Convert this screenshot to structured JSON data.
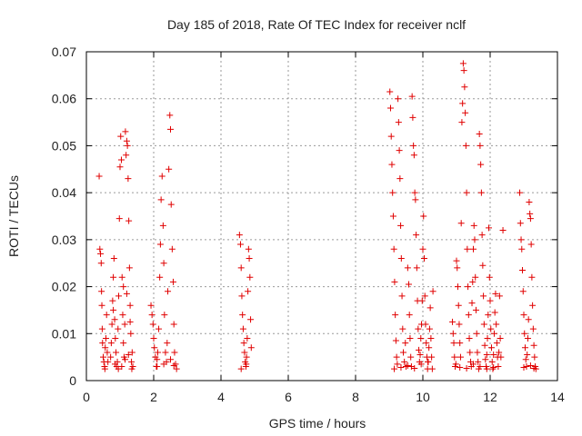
{
  "chart_data": {
    "type": "scatter",
    "title": "Day 185 of 2018, Rate Of TEC Index for receiver nclf",
    "xlabel": "GPS time / hours",
    "ylabel": "ROTI / TECUs",
    "xlim": [
      0,
      14
    ],
    "ylim": [
      0,
      0.07
    ],
    "xticks": [
      0,
      2,
      4,
      6,
      8,
      10,
      12,
      14
    ],
    "yticks": [
      0,
      0.01,
      0.02,
      0.03,
      0.04,
      0.05,
      0.06,
      0.07
    ],
    "ytick_labels": [
      "0",
      "0.01",
      "0.02",
      "0.03",
      "0.04",
      "0.05",
      "0.06",
      "0.07"
    ],
    "marker": "+",
    "color": "#e00000",
    "grid": true,
    "series": [
      {
        "name": "ROTI",
        "points": [
          [
            0.38,
            0.0435
          ],
          [
            0.4,
            0.028
          ],
          [
            0.42,
            0.027
          ],
          [
            0.44,
            0.025
          ],
          [
            0.45,
            0.019
          ],
          [
            0.46,
            0.016
          ],
          [
            0.47,
            0.011
          ],
          [
            0.48,
            0.008
          ],
          [
            0.5,
            0.005
          ],
          [
            0.52,
            0.004
          ],
          [
            0.54,
            0.003
          ],
          [
            0.55,
            0.0025
          ],
          [
            0.56,
            0.007
          ],
          [
            0.58,
            0.009
          ],
          [
            0.6,
            0.014
          ],
          [
            0.62,
            0.006
          ],
          [
            0.64,
            0.004
          ],
          [
            0.72,
            0.005
          ],
          [
            0.74,
            0.008
          ],
          [
            0.76,
            0.012
          ],
          [
            0.78,
            0.017
          ],
          [
            0.8,
            0.022
          ],
          [
            0.82,
            0.026
          ],
          [
            0.84,
            0.013
          ],
          [
            0.86,
            0.009
          ],
          [
            0.88,
            0.006
          ],
          [
            0.9,
            0.003
          ],
          [
            0.92,
            0.004
          ],
          [
            0.94,
            0.011
          ],
          [
            0.96,
            0.018
          ],
          [
            0.98,
            0.0345
          ],
          [
            1.0,
            0.0455
          ],
          [
            1.02,
            0.052
          ],
          [
            1.04,
            0.047
          ],
          [
            1.06,
            0.022
          ],
          [
            1.08,
            0.014
          ],
          [
            1.1,
            0.008
          ],
          [
            1.12,
            0.005
          ],
          [
            1.14,
            0.012
          ],
          [
            1.16,
            0.053
          ],
          [
            1.18,
            0.048
          ],
          [
            1.2,
            0.051
          ],
          [
            1.22,
            0.05
          ],
          [
            1.24,
            0.043
          ],
          [
            1.26,
            0.034
          ],
          [
            1.28,
            0.024
          ],
          [
            1.3,
            0.016
          ],
          [
            1.32,
            0.01
          ],
          [
            1.34,
            0.004
          ],
          [
            1.36,
            0.006
          ],
          [
            1.38,
            0.003
          ],
          [
            0.85,
            0.0035
          ],
          [
            0.95,
            0.0025
          ],
          [
            1.05,
            0.003
          ],
          [
            1.15,
            0.0045
          ],
          [
            1.25,
            0.0055
          ],
          [
            1.35,
            0.0025
          ],
          [
            0.8,
            0.015
          ],
          [
            1.1,
            0.02
          ],
          [
            1.2,
            0.0185
          ],
          [
            1.3,
            0.0125
          ],
          [
            1.92,
            0.016
          ],
          [
            1.95,
            0.014
          ],
          [
            1.98,
            0.012
          ],
          [
            2.0,
            0.009
          ],
          [
            2.02,
            0.007
          ],
          [
            2.05,
            0.005
          ],
          [
            2.08,
            0.003
          ],
          [
            2.1,
            0.0045
          ],
          [
            2.12,
            0.006
          ],
          [
            2.15,
            0.011
          ],
          [
            2.18,
            0.022
          ],
          [
            2.2,
            0.029
          ],
          [
            2.22,
            0.0385
          ],
          [
            2.25,
            0.0435
          ],
          [
            2.28,
            0.033
          ],
          [
            2.3,
            0.025
          ],
          [
            2.32,
            0.014
          ],
          [
            2.35,
            0.006
          ],
          [
            2.38,
            0.004
          ],
          [
            2.4,
            0.008
          ],
          [
            2.42,
            0.019
          ],
          [
            2.45,
            0.045
          ],
          [
            2.48,
            0.0565
          ],
          [
            2.5,
            0.0535
          ],
          [
            2.52,
            0.0375
          ],
          [
            2.55,
            0.028
          ],
          [
            2.58,
            0.021
          ],
          [
            2.6,
            0.012
          ],
          [
            2.62,
            0.006
          ],
          [
            2.65,
            0.0035
          ],
          [
            2.68,
            0.0025
          ],
          [
            2.1,
            0.003
          ],
          [
            2.3,
            0.0035
          ],
          [
            2.5,
            0.0045
          ],
          [
            2.6,
            0.0032
          ],
          [
            4.55,
            0.031
          ],
          [
            4.58,
            0.029
          ],
          [
            4.6,
            0.024
          ],
          [
            4.62,
            0.018
          ],
          [
            4.64,
            0.014
          ],
          [
            4.66,
            0.011
          ],
          [
            4.68,
            0.008
          ],
          [
            4.7,
            0.006
          ],
          [
            4.72,
            0.004
          ],
          [
            4.74,
            0.003
          ],
          [
            4.76,
            0.005
          ],
          [
            4.78,
            0.009
          ],
          [
            4.8,
            0.019
          ],
          [
            4.82,
            0.028
          ],
          [
            4.84,
            0.026
          ],
          [
            4.86,
            0.022
          ],
          [
            4.88,
            0.013
          ],
          [
            4.9,
            0.007
          ],
          [
            4.6,
            0.0025
          ],
          [
            4.75,
            0.0035
          ],
          [
            9.02,
            0.0615
          ],
          [
            9.04,
            0.058
          ],
          [
            9.06,
            0.052
          ],
          [
            9.08,
            0.046
          ],
          [
            9.1,
            0.04
          ],
          [
            9.12,
            0.035
          ],
          [
            9.14,
            0.028
          ],
          [
            9.16,
            0.021
          ],
          [
            9.18,
            0.014
          ],
          [
            9.2,
            0.0085
          ],
          [
            9.22,
            0.005
          ],
          [
            9.24,
            0.0035
          ],
          [
            9.26,
            0.06
          ],
          [
            9.28,
            0.055
          ],
          [
            9.3,
            0.049
          ],
          [
            9.32,
            0.043
          ],
          [
            9.34,
            0.033
          ],
          [
            9.36,
            0.026
          ],
          [
            9.38,
            0.018
          ],
          [
            9.4,
            0.011
          ],
          [
            9.42,
            0.006
          ],
          [
            9.45,
            0.004
          ],
          [
            9.48,
            0.008
          ],
          [
            9.5,
            0.003
          ],
          [
            9.55,
            0.024
          ],
          [
            9.58,
            0.0205
          ],
          [
            9.6,
            0.014
          ],
          [
            9.62,
            0.009
          ],
          [
            9.64,
            0.005
          ],
          [
            9.66,
            0.003
          ],
          [
            9.68,
            0.0605
          ],
          [
            9.7,
            0.056
          ],
          [
            9.72,
            0.05
          ],
          [
            9.74,
            0.048
          ],
          [
            9.76,
            0.04
          ],
          [
            9.78,
            0.0385
          ],
          [
            9.8,
            0.031
          ],
          [
            9.82,
            0.024
          ],
          [
            9.84,
            0.017
          ],
          [
            9.86,
            0.011
          ],
          [
            9.88,
            0.0065
          ],
          [
            9.9,
            0.004
          ],
          [
            9.92,
            0.0055
          ],
          [
            9.94,
            0.009
          ],
          [
            9.96,
            0.012
          ],
          [
            9.98,
            0.017
          ],
          [
            10.0,
            0.028
          ],
          [
            10.02,
            0.035
          ],
          [
            10.04,
            0.026
          ],
          [
            10.06,
            0.018
          ],
          [
            10.08,
            0.012
          ],
          [
            10.1,
            0.008
          ],
          [
            10.12,
            0.005
          ],
          [
            10.14,
            0.0025
          ],
          [
            10.16,
            0.004
          ],
          [
            10.18,
            0.007
          ],
          [
            10.2,
            0.011
          ],
          [
            10.22,
            0.0155
          ],
          [
            10.24,
            0.009
          ],
          [
            10.26,
            0.005
          ],
          [
            10.28,
            0.0025
          ],
          [
            10.3,
            0.019
          ],
          [
            9.15,
            0.0025
          ],
          [
            9.35,
            0.0028
          ],
          [
            9.55,
            0.0032
          ],
          [
            9.75,
            0.0026
          ],
          [
            9.95,
            0.0035
          ],
          [
            10.15,
            0.004
          ],
          [
            10.88,
            0.0125
          ],
          [
            10.9,
            0.01
          ],
          [
            10.92,
            0.008
          ],
          [
            10.94,
            0.005
          ],
          [
            10.96,
            0.003
          ],
          [
            10.98,
            0.0035
          ],
          [
            11.0,
            0.0255
          ],
          [
            11.02,
            0.024
          ],
          [
            11.04,
            0.02
          ],
          [
            11.06,
            0.016
          ],
          [
            11.08,
            0.012
          ],
          [
            11.1,
            0.008
          ],
          [
            11.12,
            0.005
          ],
          [
            11.14,
            0.0335
          ],
          [
            11.16,
            0.055
          ],
          [
            11.18,
            0.059
          ],
          [
            11.2,
            0.0675
          ],
          [
            11.22,
            0.066
          ],
          [
            11.24,
            0.0625
          ],
          [
            11.26,
            0.057
          ],
          [
            11.28,
            0.05
          ],
          [
            11.3,
            0.04
          ],
          [
            11.32,
            0.028
          ],
          [
            11.34,
            0.02
          ],
          [
            11.36,
            0.014
          ],
          [
            11.38,
            0.009
          ],
          [
            11.4,
            0.006
          ],
          [
            11.42,
            0.004
          ],
          [
            11.44,
            0.003
          ],
          [
            11.46,
            0.0165
          ],
          [
            11.48,
            0.021
          ],
          [
            11.5,
            0.028
          ],
          [
            11.52,
            0.033
          ],
          [
            11.54,
            0.03
          ],
          [
            11.56,
            0.022
          ],
          [
            11.58,
            0.015
          ],
          [
            11.6,
            0.01
          ],
          [
            11.62,
            0.006
          ],
          [
            11.64,
            0.004
          ],
          [
            11.66,
            0.0025
          ],
          [
            11.68,
            0.0525
          ],
          [
            11.7,
            0.05
          ],
          [
            11.72,
            0.046
          ],
          [
            11.74,
            0.04
          ],
          [
            11.76,
            0.031
          ],
          [
            11.78,
            0.0245
          ],
          [
            11.8,
            0.018
          ],
          [
            11.82,
            0.012
          ],
          [
            11.84,
            0.0075
          ],
          [
            11.86,
            0.0045
          ],
          [
            11.88,
            0.003
          ],
          [
            11.9,
            0.0055
          ],
          [
            11.92,
            0.009
          ],
          [
            11.94,
            0.014
          ],
          [
            11.96,
            0.0325
          ],
          [
            11.98,
            0.022
          ],
          [
            12.0,
            0.017
          ],
          [
            12.02,
            0.011
          ],
          [
            12.04,
            0.007
          ],
          [
            12.06,
            0.004
          ],
          [
            12.08,
            0.0025
          ],
          [
            12.1,
            0.0055
          ],
          [
            12.12,
            0.01
          ],
          [
            12.14,
            0.0145
          ],
          [
            12.16,
            0.0185
          ],
          [
            12.18,
            0.012
          ],
          [
            12.2,
            0.008
          ],
          [
            12.22,
            0.005
          ],
          [
            12.24,
            0.003
          ],
          [
            12.26,
            0.006
          ],
          [
            12.28,
            0.018
          ],
          [
            12.3,
            0.009
          ],
          [
            12.32,
            0.005
          ],
          [
            12.38,
            0.032
          ],
          [
            11.1,
            0.0028
          ],
          [
            11.3,
            0.0026
          ],
          [
            11.5,
            0.0035
          ],
          [
            11.7,
            0.003
          ],
          [
            11.9,
            0.0025
          ],
          [
            12.1,
            0.0028
          ],
          [
            12.88,
            0.04
          ],
          [
            12.9,
            0.0335
          ],
          [
            12.92,
            0.03
          ],
          [
            12.94,
            0.028
          ],
          [
            12.96,
            0.0235
          ],
          [
            12.98,
            0.019
          ],
          [
            13.0,
            0.014
          ],
          [
            13.02,
            0.01
          ],
          [
            13.04,
            0.007
          ],
          [
            13.06,
            0.0045
          ],
          [
            13.08,
            0.003
          ],
          [
            13.1,
            0.0055
          ],
          [
            13.12,
            0.009
          ],
          [
            13.14,
            0.013
          ],
          [
            13.16,
            0.038
          ],
          [
            13.18,
            0.0355
          ],
          [
            13.2,
            0.0345
          ],
          [
            13.22,
            0.029
          ],
          [
            13.24,
            0.022
          ],
          [
            13.26,
            0.016
          ],
          [
            13.28,
            0.011
          ],
          [
            13.3,
            0.0075
          ],
          [
            13.32,
            0.005
          ],
          [
            13.34,
            0.003
          ],
          [
            13.36,
            0.0025
          ],
          [
            13.0,
            0.0028
          ],
          [
            13.2,
            0.0032
          ],
          [
            13.3,
            0.0026
          ]
        ]
      }
    ]
  }
}
